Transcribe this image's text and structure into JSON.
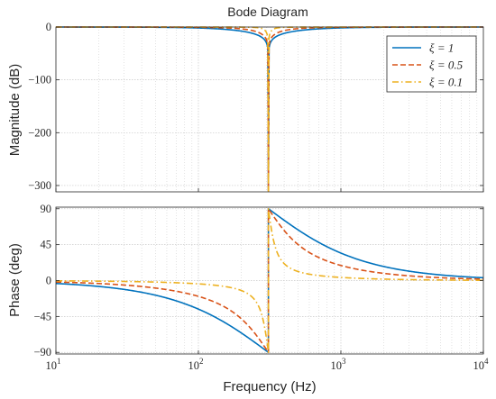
{
  "chart_data": {
    "type": "line",
    "title": "Bode Diagram",
    "xlabel": "Frequency  (Hz)",
    "x_scale": "log",
    "xlim": [
      10,
      10000
    ],
    "x_ticks": [
      10,
      100,
      1000,
      10000
    ],
    "x_tick_labels": [
      {
        "base": "10",
        "exp": "1"
      },
      {
        "base": "10",
        "exp": "2"
      },
      {
        "base": "10",
        "exp": "3"
      },
      {
        "base": "10",
        "exp": "4"
      }
    ],
    "grid": true,
    "notch_frequency_hz": 310,
    "legend": {
      "placement": "top-right",
      "panel": "magnitude"
    },
    "series": [
      {
        "name": "ξ = 1",
        "zeta": 1,
        "color": "#0072BD",
        "dash": "solid"
      },
      {
        "name": "ξ = 0.5",
        "zeta": 0.5,
        "color": "#D95319",
        "dash": "dashed"
      },
      {
        "name": "ξ = 0.1",
        "zeta": 0.1,
        "color": "#EDB120",
        "dash": "dashdot"
      }
    ],
    "panels": [
      {
        "id": "magnitude",
        "ylabel": "Magnitude (dB)",
        "ylim": [
          -312,
          0
        ],
        "y_ticks": [
          0,
          -100,
          -200,
          -300
        ],
        "y_tick_labels": [
          "0",
          "−100",
          "−200",
          "−300"
        ]
      },
      {
        "id": "phase",
        "ylabel": "Phase (deg)",
        "ylim": [
          -92,
          92
        ],
        "y_ticks": [
          90,
          45,
          0,
          -45,
          -90
        ],
        "y_tick_labels": [
          "90",
          "45",
          "0",
          "−45",
          "−90"
        ]
      }
    ]
  }
}
